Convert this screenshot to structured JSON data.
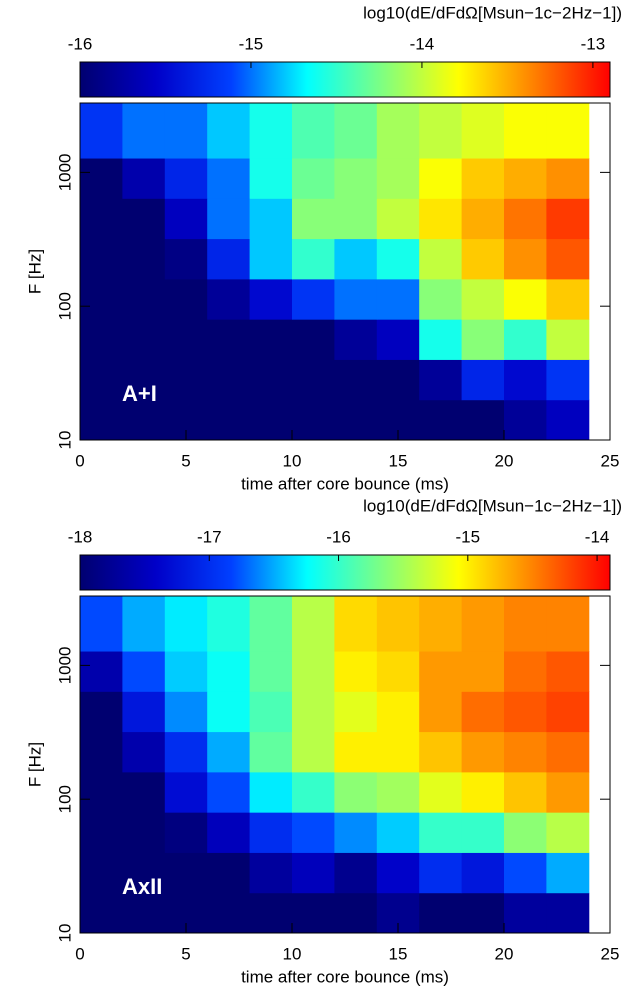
{
  "chart_data": [
    {
      "type": "heatmap",
      "colorbar_label": "log10(dE/dFdΩ[Msun−1c−2Hz−1])",
      "x_label": "time after core bounce (ms)",
      "y_label": "F [Hz]",
      "annotation": "A+I",
      "xlim": [
        0,
        25
      ],
      "xticks": [
        0,
        5,
        10,
        15,
        20,
        25
      ],
      "ylim": [
        10,
        3300
      ],
      "yticks": [
        10,
        100,
        1000
      ],
      "log_y": true,
      "clim": [
        -16,
        -12.9
      ],
      "cticks": [
        -16,
        -15,
        -14,
        -13
      ],
      "colors": [
        "#000070",
        "#0000c8",
        "#0040ff",
        "#00ffff",
        "#80ff80",
        "#ffff00",
        "#ff8000",
        "#ff0000"
      ],
      "x_bins": [
        0,
        2,
        4,
        6,
        8,
        10,
        12,
        14,
        16,
        18,
        20,
        22,
        24
      ],
      "y_bins": [
        10,
        20,
        40,
        80,
        160,
        320,
        640,
        1280,
        3300
      ],
      "values": [
        [
          -16,
          -16,
          -16,
          -16,
          -16,
          -16,
          -16,
          -16,
          -16,
          -16,
          -15.8,
          -15.6
        ],
        [
          -16,
          -16,
          -16,
          -16,
          -16,
          -16,
          -16,
          -16,
          -15.8,
          -15.3,
          -15.5,
          -15.2
        ],
        [
          -16,
          -16,
          -16,
          -16,
          -16,
          -16,
          -15.8,
          -15.6,
          -14.6,
          -14.2,
          -14.5,
          -14.0
        ],
        [
          -16,
          -16,
          -16,
          -15.8,
          -15.5,
          -15.2,
          -15.0,
          -15.0,
          -14.2,
          -14.0,
          -13.8,
          -13.6
        ],
        [
          -16,
          -16,
          -15.9,
          -15.3,
          -14.8,
          -14.5,
          -14.8,
          -14.6,
          -14.0,
          -13.6,
          -13.4,
          -13.2
        ],
        [
          -16,
          -16,
          -15.6,
          -15.0,
          -14.8,
          -14.2,
          -14.2,
          -14.0,
          -13.7,
          -13.5,
          -13.3,
          -13.1
        ],
        [
          -16,
          -15.7,
          -15.3,
          -15.0,
          -14.6,
          -14.3,
          -14.2,
          -14.1,
          -13.8,
          -13.6,
          -13.5,
          -13.4
        ],
        [
          -15.2,
          -15.0,
          -15.0,
          -14.8,
          -14.6,
          -14.4,
          -14.3,
          -14.1,
          -14.0,
          -13.9,
          -13.8,
          -13.8
        ]
      ]
    },
    {
      "type": "heatmap",
      "colorbar_label": "log10(dE/dFdΩ[Msun−1c−2Hz−1])",
      "x_label": "time after core bounce (ms)",
      "y_label": "F [Hz]",
      "annotation": "AxII",
      "xlim": [
        0,
        25
      ],
      "xticks": [
        0,
        5,
        10,
        15,
        20,
        25
      ],
      "ylim": [
        10,
        3300
      ],
      "yticks": [
        10,
        100,
        1000
      ],
      "log_y": true,
      "clim": [
        -18,
        -13.9
      ],
      "cticks": [
        -18,
        -17,
        -16,
        -15,
        -14
      ],
      "colors": [
        "#000070",
        "#0000c8",
        "#0040ff",
        "#00ffff",
        "#80ff80",
        "#ffff00",
        "#ff8000",
        "#ff0000"
      ],
      "x_bins": [
        0,
        2,
        4,
        6,
        8,
        10,
        12,
        14,
        16,
        18,
        20,
        22,
        24
      ],
      "y_bins": [
        10,
        20,
        40,
        80,
        160,
        320,
        640,
        1280,
        3300
      ],
      "values": [
        [
          -18,
          -18,
          -18,
          -18,
          -18,
          -18,
          -18,
          -17.8,
          -18,
          -18,
          -17.7,
          -17.7
        ],
        [
          -18,
          -18,
          -18,
          -18,
          -17.7,
          -17.5,
          -17.8,
          -17.4,
          -17.0,
          -17.2,
          -16.8,
          -16.5
        ],
        [
          -18,
          -18,
          -17.9,
          -17.5,
          -17.0,
          -16.8,
          -16.6,
          -16.4,
          -16.0,
          -16.0,
          -15.6,
          -15.4
        ],
        [
          -18,
          -18,
          -17.3,
          -16.8,
          -16.3,
          -16.0,
          -15.6,
          -15.5,
          -15.2,
          -15.0,
          -14.8,
          -14.6
        ],
        [
          -18,
          -17.6,
          -17.0,
          -16.5,
          -15.8,
          -15.4,
          -15.0,
          -15.0,
          -14.8,
          -14.6,
          -14.5,
          -14.4
        ],
        [
          -18,
          -17.2,
          -16.6,
          -16.2,
          -15.9,
          -15.4,
          -15.2,
          -15.0,
          -14.6,
          -14.4,
          -14.3,
          -14.2
        ],
        [
          -17.6,
          -16.8,
          -16.4,
          -16.2,
          -15.8,
          -15.4,
          -15.0,
          -14.9,
          -14.6,
          -14.6,
          -14.4,
          -14.3
        ],
        [
          -16.8,
          -16.5,
          -16.3,
          -16.1,
          -15.8,
          -15.4,
          -14.9,
          -14.8,
          -14.7,
          -14.6,
          -14.5,
          -14.5
        ]
      ]
    }
  ]
}
